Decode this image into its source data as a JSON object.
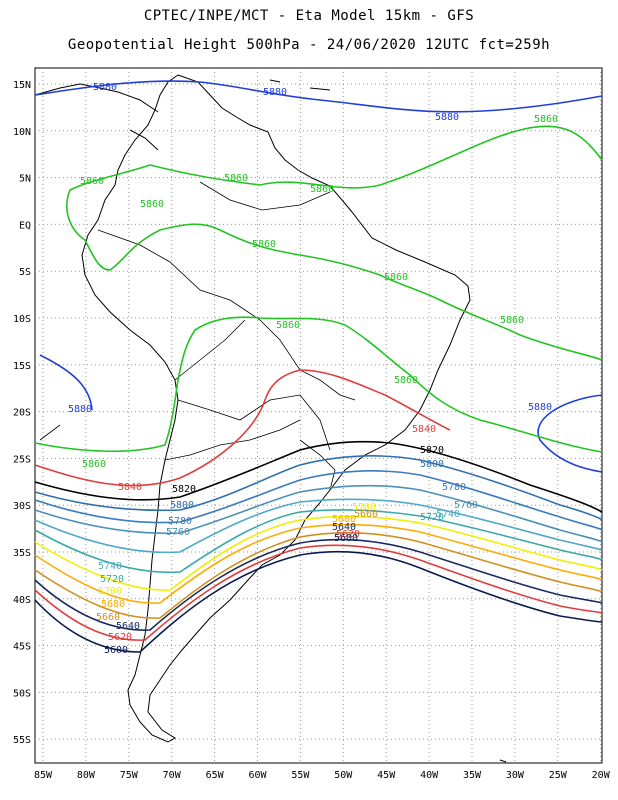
{
  "header": {
    "line1": "CPTEC/INPE/MCT -  Eta Model 15km - GFS",
    "line2": "Geopotential Height 500hPa - 24/06/2020 12UTC fct=259h"
  },
  "map": {
    "lon_range": [
      -86,
      -19
    ],
    "lat_range": [
      17,
      -60
    ],
    "lon_ticks": [
      "85W",
      "80W",
      "75W",
      "70W",
      "65W",
      "60W",
      "55W",
      "50W",
      "45W",
      "40W",
      "35W",
      "30W",
      "25W",
      "20W"
    ],
    "lat_ticks": [
      "15N",
      "10N",
      "5N",
      "EQ",
      "5S",
      "10S",
      "15S",
      "20S",
      "25S",
      "30S",
      "35S",
      "40S",
      "45S",
      "50S",
      "55S"
    ],
    "colors": {
      "c5880": "#1f3fd9",
      "c5860": "#22c422",
      "c5840": "#e03c3c",
      "c5820": "#000000",
      "c5800": "#2f6fb0",
      "c5780": "#3a7ac0",
      "c5760": "#4a90b8",
      "c5740": "#4fa8c8",
      "c5720": "#3aa8a8",
      "c5700": "#f0f000",
      "c5680": "#ffaa00",
      "c5660": "#d09020",
      "c5640": "#1a2a60",
      "c5620": "#e03c3c",
      "c5600": "#0a1a50",
      "coast": "#000000",
      "frame": "#000000"
    }
  },
  "contours": [
    {
      "label": "5880",
      "color": "#1f3fd9",
      "labels": [
        [
          105,
          90
        ],
        [
          275,
          95
        ],
        [
          447,
          120
        ],
        [
          80,
          412
        ],
        [
          540,
          410
        ]
      ]
    },
    {
      "label": "5860",
      "color": "#22c422",
      "labels": [
        [
          92,
          184
        ],
        [
          152,
          207
        ],
        [
          236,
          181
        ],
        [
          322,
          192
        ],
        [
          264,
          247
        ],
        [
          396,
          280
        ],
        [
          288,
          328
        ],
        [
          512,
          323
        ],
        [
          406,
          383
        ],
        [
          546,
          122
        ],
        [
          94,
          467
        ]
      ]
    },
    {
      "label": "5840",
      "color": "#e03c3c",
      "labels": [
        [
          130,
          490
        ],
        [
          424,
          432
        ]
      ]
    },
    {
      "label": "5820",
      "color": "#000000",
      "labels": [
        [
          184,
          492
        ],
        [
          432,
          453
        ]
      ]
    },
    {
      "label": "5800",
      "color": "#2f6fb0",
      "labels": [
        [
          182,
          508
        ],
        [
          432,
          467
        ]
      ]
    },
    {
      "label": "5780",
      "color": "#3a7ac0",
      "labels": [
        [
          180,
          524
        ],
        [
          454,
          490
        ]
      ]
    },
    {
      "label": "5760",
      "color": "#4a90b8",
      "labels": [
        [
          178,
          535
        ],
        [
          466,
          508
        ]
      ]
    },
    {
      "label": "5740",
      "color": "#4fa8c8",
      "labels": [
        [
          110,
          569
        ],
        [
          448,
          517
        ]
      ]
    },
    {
      "label": "5720",
      "color": "#3aa8a8",
      "labels": [
        [
          112,
          582
        ],
        [
          432,
          520
        ]
      ]
    },
    {
      "label": "5700",
      "color": "#f0f000",
      "labels": [
        [
          110,
          594
        ],
        [
          364,
          510
        ]
      ]
    },
    {
      "label": "5680",
      "color": "#ffaa00",
      "labels": [
        [
          113,
          607
        ],
        [
          344,
          522
        ]
      ]
    },
    {
      "label": "5660",
      "color": "#d09020",
      "labels": [
        [
          108,
          620
        ],
        [
          366,
          517
        ]
      ]
    },
    {
      "label": "5640",
      "color": "#1a2a60",
      "labels": [
        [
          128,
          629
        ],
        [
          344,
          530
        ]
      ]
    },
    {
      "label": "5620",
      "color": "#e03c3c",
      "labels": [
        [
          120,
          640
        ],
        [
          348,
          537
        ]
      ]
    },
    {
      "label": "5600",
      "color": "#0a1a50",
      "labels": [
        [
          116,
          653
        ],
        [
          346,
          541
        ]
      ]
    }
  ]
}
